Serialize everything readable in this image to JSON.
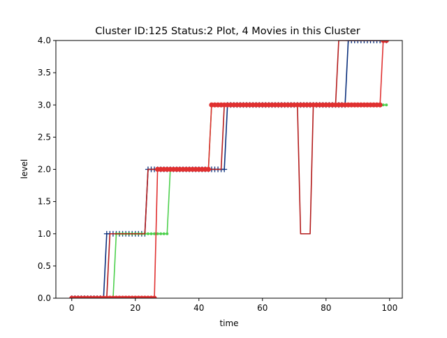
{
  "chart_data": {
    "type": "line",
    "title": "Cluster ID:125 Status:2 Plot, 4 Movies in this Cluster",
    "xlabel": "time",
    "ylabel": "level",
    "xlim": [
      -5,
      104
    ],
    "ylim": [
      0,
      4
    ],
    "xticks": [
      "0",
      "20",
      "40",
      "60",
      "80",
      "100"
    ],
    "xtick_values": [
      0,
      20,
      40,
      60,
      80,
      100
    ],
    "yticks": [
      "0.0",
      "0.5",
      "1.0",
      "1.5",
      "2.0",
      "2.5",
      "3.0",
      "3.5",
      "4.0"
    ],
    "ytick_values": [
      0,
      0.5,
      1,
      1.5,
      2,
      2.5,
      3,
      3.5,
      4
    ],
    "grid": false,
    "series": [
      {
        "color": "#0a2f7c",
        "marker": "plus",
        "segments": [
          {
            "from": 0,
            "to": 10,
            "value": 0
          },
          {
            "from": 11,
            "to": 23,
            "value": 1
          },
          {
            "from": 24,
            "to": 48,
            "value": 2
          },
          {
            "from": 49,
            "to": 86,
            "value": 3
          },
          {
            "from": 87,
            "to": 99,
            "value": 4
          }
        ]
      },
      {
        "color": "#4dd04d",
        "marker": "dot",
        "segments": [
          {
            "from": 0,
            "to": 13,
            "value": 0
          },
          {
            "from": 14,
            "to": 30,
            "value": 1
          },
          {
            "from": 31,
            "to": 43,
            "value": 2
          },
          {
            "from": 44,
            "to": 99,
            "value": 3
          }
        ]
      },
      {
        "color": "#b31b1b",
        "marker": "none",
        "segments": [
          {
            "from": 0,
            "to": 11,
            "value": 0
          },
          {
            "from": 12,
            "to": 23,
            "value": 1
          },
          {
            "from": 24,
            "to": 47,
            "value": 2
          },
          {
            "from": 48,
            "to": 71,
            "value": 3
          },
          {
            "from": 72,
            "to": 75,
            "value": 1
          },
          {
            "from": 76,
            "to": 83,
            "value": 3
          },
          {
            "from": 84,
            "to": 99,
            "value": 4
          }
        ]
      },
      {
        "color": "#e03030",
        "marker": "circle",
        "segments": [
          {
            "from": 0,
            "to": 26,
            "value": 0
          },
          {
            "from": 27,
            "to": 43,
            "value": 2
          },
          {
            "from": 44,
            "to": 97,
            "value": 3
          },
          {
            "from": 98,
            "to": 99,
            "value": 4
          }
        ]
      }
    ]
  }
}
